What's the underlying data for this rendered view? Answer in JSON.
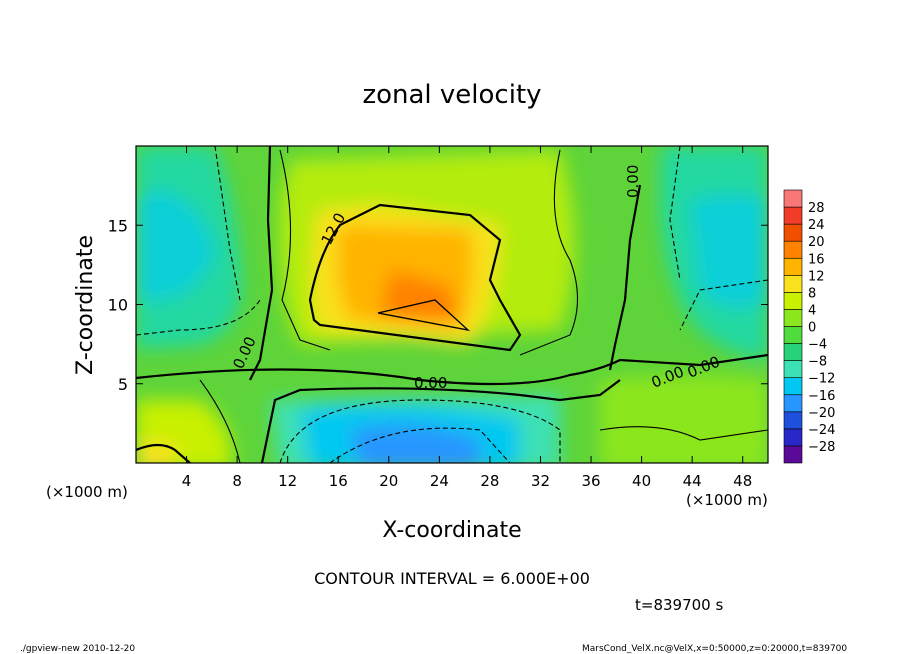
{
  "chart_data": {
    "type": "heatmap",
    "title": "zonal velocity",
    "xlabel": "X-coordinate",
    "ylabel": "Z-coordinate",
    "x_unit_label": "(×1000 m)",
    "y_unit_label": "(×1000 m)",
    "xlim": [
      0,
      50
    ],
    "ylim": [
      0,
      20
    ],
    "x_ticks": [
      4,
      8,
      12,
      16,
      20,
      24,
      28,
      32,
      36,
      40,
      44,
      48
    ],
    "y_ticks": [
      5,
      10,
      15
    ],
    "colorbar": {
      "levels": [
        -28,
        -24,
        -20,
        -16,
        -12,
        -8,
        -4,
        0,
        4,
        8,
        12,
        16,
        20,
        24,
        28
      ],
      "colors": [
        "#5a0a96",
        "#2828c8",
        "#1e50dc",
        "#2896ff",
        "#00c8f0",
        "#3ce1b4",
        "#28d278",
        "#50dc3c",
        "#8ce61e",
        "#c8f000",
        "#fae11e",
        "#ffb400",
        "#ff8200",
        "#f05000",
        "#f03c28",
        "#f87878"
      ]
    },
    "contour_interval_text": "CONTOUR INTERVAL = 6.000E+00",
    "contour_labels": [
      "12.0",
      "0.00",
      "0.00",
      "0.00",
      "0.00",
      "0.00"
    ],
    "max_region": {
      "x_center": 22,
      "z_center": 11.5,
      "value": 20
    },
    "min_region": {
      "x_center": 23,
      "z_center": 1,
      "value": -16
    },
    "time_text": "t=839700 s"
  },
  "footer": {
    "program": "./gpview-new  2010-12-20",
    "source": "MarsCond_VelX.nc@VelX,x=0:50000,z=0:20000,t=839700"
  }
}
